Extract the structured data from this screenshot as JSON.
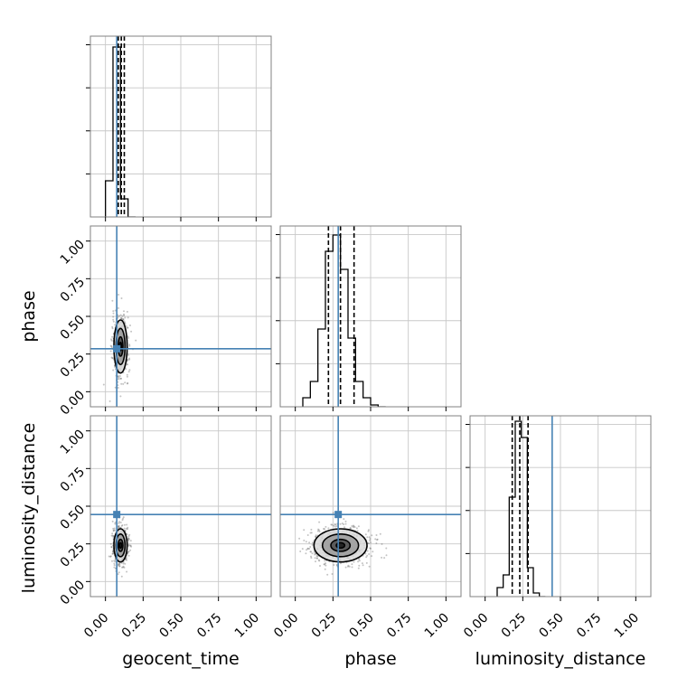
{
  "chart_data": {
    "type": "corner",
    "parameters": [
      "geocent_time",
      "phase",
      "luminosity_distance"
    ],
    "axis_range": [
      -0.1,
      1.1
    ],
    "tick_labels": [
      "0.00",
      "0.25",
      "0.50",
      "0.75",
      "1.00"
    ],
    "tick_values": [
      0.0,
      0.25,
      0.5,
      0.75,
      1.0
    ],
    "grid": true,
    "colors": {
      "truth": "#4682b4",
      "histogram": "#000000",
      "quantile_line": "#000000",
      "scatter": "#555555",
      "grid": "#c8c8c8",
      "axes": "#808080"
    },
    "truths": {
      "geocent_time": 0.075,
      "phase": 0.285,
      "luminosity_distance": 0.445
    },
    "histograms": [
      {
        "parameter": "geocent_time",
        "bin_edges": [
          0.0,
          0.05,
          0.1,
          0.15,
          0.2
        ],
        "counts": [
          0.2,
          0.94,
          0.1,
          0.0
        ],
        "quantiles": [
          0.085,
          0.105,
          0.125
        ]
      },
      {
        "parameter": "phase",
        "bin_edges": [
          0.05,
          0.1,
          0.15,
          0.2,
          0.25,
          0.3,
          0.35,
          0.4,
          0.45,
          0.5,
          0.55,
          0.6
        ],
        "counts": [
          0.05,
          0.14,
          0.43,
          0.86,
          0.95,
          0.76,
          0.38,
          0.14,
          0.05,
          0.01,
          0.0
        ],
        "quantiles": [
          0.22,
          0.3,
          0.39
        ]
      },
      {
        "parameter": "luminosity_distance",
        "bin_edges": [
          0.08,
          0.12,
          0.16,
          0.2,
          0.24,
          0.28,
          0.32,
          0.36,
          0.4
        ],
        "counts": [
          0.05,
          0.12,
          0.55,
          0.97,
          0.88,
          0.16,
          0.02,
          0.0
        ],
        "quantiles": [
          0.18,
          0.23,
          0.285
        ]
      }
    ],
    "scatter_panels": [
      {
        "x": "geocent_time",
        "y": "phase",
        "x_center": 0.1,
        "y_center": 0.3,
        "x_spread": 0.02,
        "y_spread": 0.08
      },
      {
        "x": "geocent_time",
        "y": "luminosity_distance",
        "x_center": 0.1,
        "y_center": 0.24,
        "x_spread": 0.02,
        "y_spread": 0.05
      },
      {
        "x": "phase",
        "y": "luminosity_distance",
        "x_center": 0.3,
        "y_center": 0.24,
        "x_spread": 0.08,
        "y_spread": 0.05
      }
    ]
  }
}
